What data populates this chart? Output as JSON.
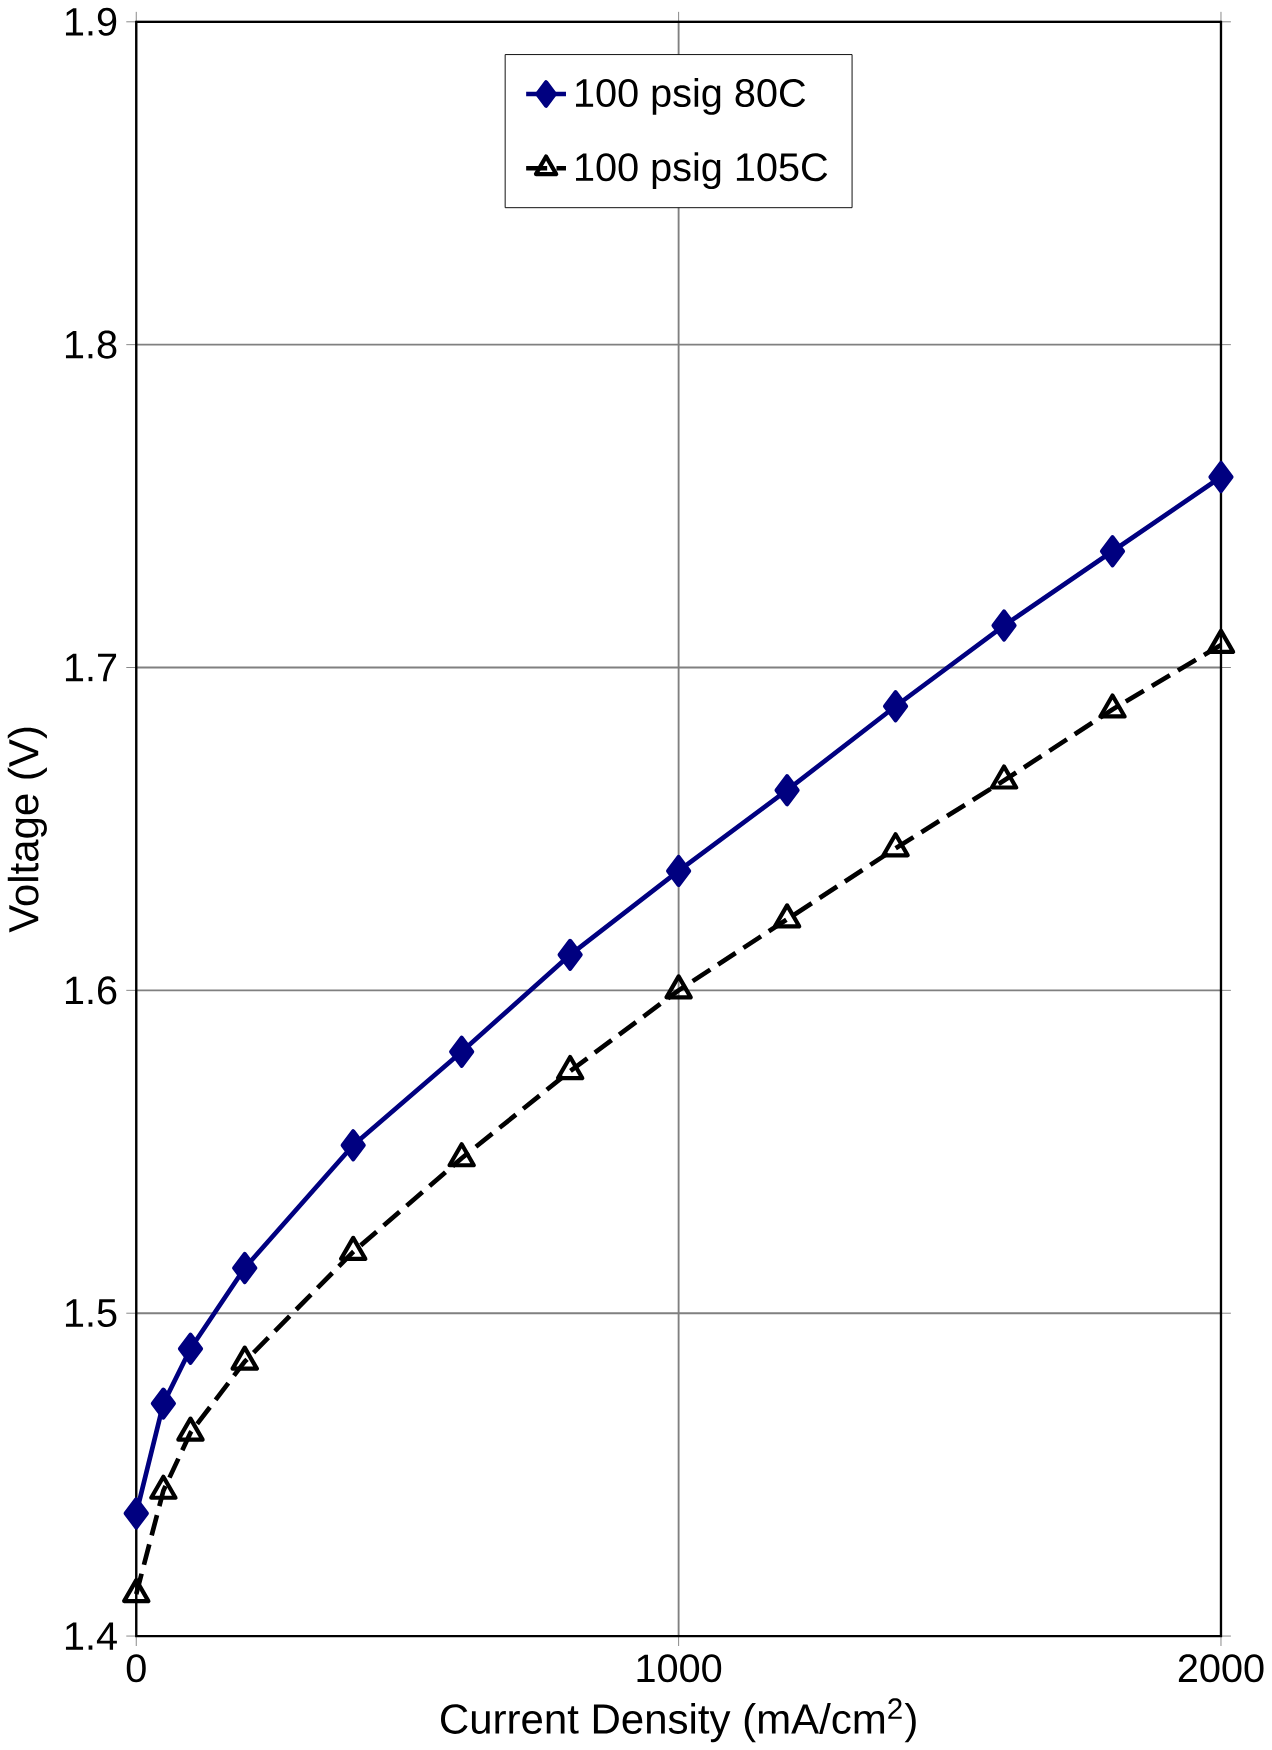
{
  "chart_data": {
    "type": "line",
    "xlabel": "Current Density (mA/cm$^{2}$)",
    "ylabel": "Voltage (V)",
    "xlim": [
      0,
      2000
    ],
    "xticks": [
      0,
      1000,
      2000
    ],
    "ylim": [
      1.4,
      1.9
    ],
    "yticks": [
      1.4,
      1.5,
      1.6,
      1.7,
      1.8,
      1.9
    ],
    "grid": true,
    "legend": "top",
    "series": [
      {
        "name": "100 psig 80C",
        "color": "#000080",
        "marker": "diamond",
        "line_style": "solid",
        "x": [
          0,
          50,
          100,
          200,
          400,
          600,
          800,
          1000,
          1200,
          1400,
          1600,
          1800,
          2000
        ],
        "values": [
          1.438,
          1.472,
          1.489,
          1.514,
          1.552,
          1.581,
          1.611,
          1.637,
          1.662,
          1.688,
          1.713,
          1.736,
          1.759
        ]
      },
      {
        "name": "100 psig 105C",
        "color": "#000000",
        "marker": "triangle",
        "line_style": "dashed",
        "x": [
          0,
          50,
          100,
          200,
          400,
          600,
          800,
          1000,
          1200,
          1400,
          1600,
          1800,
          2000
        ],
        "values": [
          1.413,
          1.445,
          1.463,
          1.485,
          1.519,
          1.548,
          1.575,
          1.6,
          1.622,
          1.644,
          1.665,
          1.687,
          1.707
        ]
      }
    ]
  }
}
